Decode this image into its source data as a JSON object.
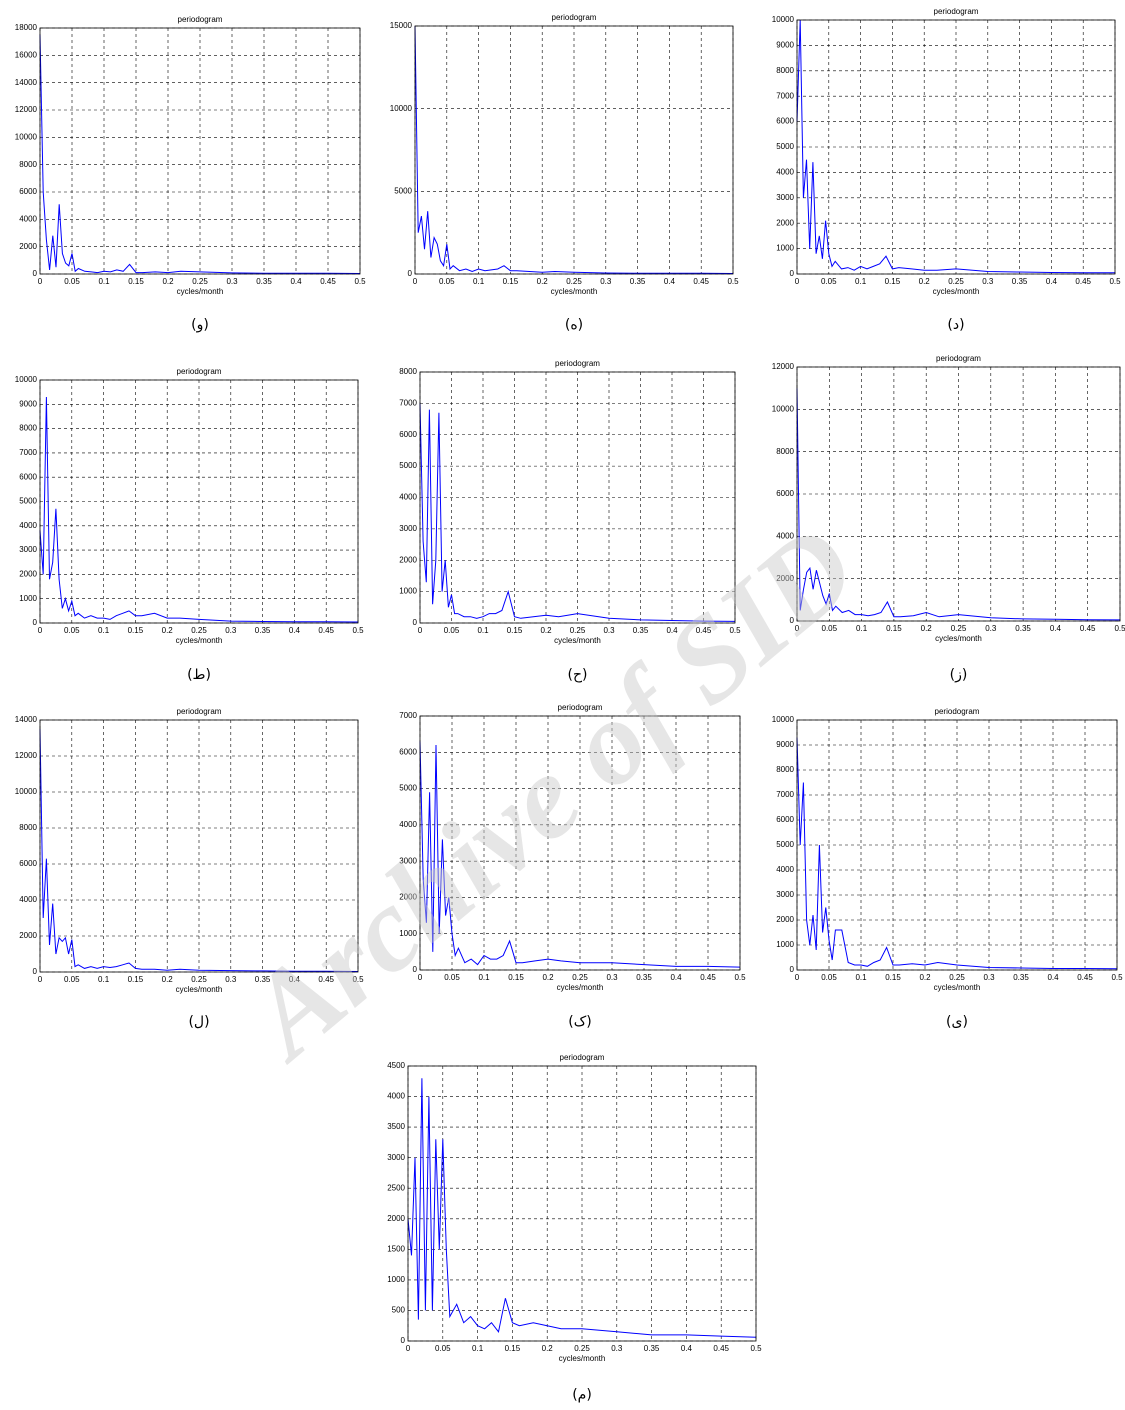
{
  "watermark": "Archive of SID",
  "chart_data": [
    {
      "type": "line",
      "title": "periodogram",
      "x_label": "cycles/month",
      "caption": "(و)",
      "color": "#0000ff",
      "grid": true,
      "x": [
        0,
        0.005,
        0.01,
        0.015,
        0.02,
        0.025,
        0.03,
        0.035,
        0.04,
        0.045,
        0.05,
        0.055,
        0.06,
        0.07,
        0.08,
        0.09,
        0.1,
        0.11,
        0.12,
        0.13,
        0.14,
        0.15,
        0.16,
        0.18,
        0.2,
        0.22,
        0.25,
        0.3,
        0.35,
        0.4,
        0.45,
        0.5
      ],
      "values": [
        17500,
        6000,
        2500,
        300,
        2800,
        500,
        5100,
        1500,
        800,
        600,
        1500,
        200,
        400,
        200,
        150,
        100,
        200,
        150,
        300,
        200,
        700,
        100,
        100,
        150,
        100,
        200,
        150,
        80,
        60,
        50,
        50,
        40
      ],
      "xlim": [
        0,
        0.5
      ],
      "xticks": [
        0,
        0.05,
        0.1,
        0.15,
        0.2,
        0.25,
        0.3,
        0.35,
        0.4,
        0.45,
        0.5
      ],
      "ylim": [
        0,
        18000
      ],
      "yticks": [
        0,
        2000,
        4000,
        6000,
        8000,
        10000,
        12000,
        14000,
        16000,
        18000
      ]
    },
    {
      "type": "line",
      "title": "periodogram",
      "x_label": "cycles/month",
      "caption": "(ه)",
      "color": "#0000ff",
      "grid": true,
      "x": [
        0,
        0.005,
        0.01,
        0.015,
        0.02,
        0.025,
        0.03,
        0.035,
        0.04,
        0.045,
        0.05,
        0.055,
        0.06,
        0.07,
        0.08,
        0.09,
        0.1,
        0.11,
        0.12,
        0.13,
        0.14,
        0.15,
        0.16,
        0.18,
        0.2,
        0.22,
        0.25,
        0.3,
        0.35,
        0.4,
        0.45,
        0.5
      ],
      "values": [
        15000,
        2500,
        3500,
        1500,
        3800,
        1000,
        2200,
        1800,
        800,
        500,
        1800,
        300,
        500,
        200,
        300,
        150,
        300,
        200,
        250,
        300,
        500,
        200,
        200,
        150,
        100,
        150,
        100,
        60,
        50,
        40,
        40,
        30
      ],
      "xlim": [
        0,
        0.5
      ],
      "xticks": [
        0,
        0.05,
        0.1,
        0.15,
        0.2,
        0.25,
        0.3,
        0.35,
        0.4,
        0.45,
        0.5
      ],
      "ylim": [
        0,
        15000
      ],
      "yticks": [
        0,
        5000,
        10000,
        15000
      ]
    },
    {
      "type": "line",
      "title": "periodogram",
      "x_label": "cycles/month",
      "caption": "(د)",
      "color": "#0000ff",
      "grid": true,
      "x": [
        0,
        0.005,
        0.01,
        0.015,
        0.02,
        0.025,
        0.03,
        0.035,
        0.04,
        0.045,
        0.05,
        0.055,
        0.06,
        0.07,
        0.08,
        0.09,
        0.1,
        0.11,
        0.12,
        0.13,
        0.14,
        0.15,
        0.16,
        0.18,
        0.2,
        0.22,
        0.25,
        0.3,
        0.35,
        0.4,
        0.45,
        0.5
      ],
      "values": [
        6000,
        10000,
        3000,
        4500,
        1000,
        4400,
        800,
        1500,
        600,
        2100,
        800,
        300,
        500,
        200,
        250,
        150,
        300,
        200,
        300,
        400,
        700,
        200,
        250,
        200,
        150,
        150,
        200,
        100,
        80,
        60,
        50,
        50
      ],
      "xlim": [
        0,
        0.5
      ],
      "xticks": [
        0,
        0.05,
        0.1,
        0.15,
        0.2,
        0.25,
        0.3,
        0.35,
        0.4,
        0.45,
        0.5
      ],
      "ylim": [
        0,
        10000
      ],
      "yticks": [
        0,
        1000,
        2000,
        3000,
        4000,
        5000,
        6000,
        7000,
        8000,
        9000,
        10000
      ]
    },
    {
      "type": "line",
      "title": "periodogram",
      "x_label": "cycles/month",
      "caption": "(ط)",
      "color": "#0000ff",
      "grid": true,
      "x": [
        0,
        0.005,
        0.01,
        0.015,
        0.02,
        0.025,
        0.03,
        0.035,
        0.04,
        0.045,
        0.05,
        0.055,
        0.06,
        0.07,
        0.08,
        0.09,
        0.1,
        0.11,
        0.12,
        0.13,
        0.14,
        0.15,
        0.16,
        0.18,
        0.2,
        0.22,
        0.25,
        0.3,
        0.35,
        0.4,
        0.45,
        0.5
      ],
      "values": [
        3800,
        2000,
        9300,
        1800,
        2500,
        4700,
        1800,
        600,
        1000,
        500,
        900,
        300,
        400,
        200,
        300,
        200,
        200,
        150,
        300,
        400,
        500,
        300,
        300,
        400,
        200,
        200,
        150,
        80,
        60,
        50,
        50,
        40
      ],
      "xlim": [
        0,
        0.5
      ],
      "xticks": [
        0,
        0.05,
        0.1,
        0.15,
        0.2,
        0.25,
        0.3,
        0.35,
        0.4,
        0.45,
        0.5
      ],
      "ylim": [
        0,
        10000
      ],
      "yticks": [
        0,
        1000,
        2000,
        3000,
        4000,
        5000,
        6000,
        7000,
        8000,
        9000,
        10000
      ]
    },
    {
      "type": "line",
      "title": "periodogram",
      "x_label": "cycles/month",
      "caption": "(ح)",
      "color": "#0000ff",
      "grid": true,
      "x": [
        0,
        0.005,
        0.01,
        0.015,
        0.02,
        0.025,
        0.03,
        0.035,
        0.04,
        0.045,
        0.05,
        0.055,
        0.06,
        0.07,
        0.08,
        0.09,
        0.1,
        0.11,
        0.12,
        0.13,
        0.14,
        0.15,
        0.16,
        0.18,
        0.2,
        0.22,
        0.25,
        0.3,
        0.35,
        0.4,
        0.45,
        0.5
      ],
      "values": [
        7000,
        2600,
        1300,
        6800,
        600,
        2000,
        6700,
        1000,
        2000,
        500,
        900,
        300,
        300,
        200,
        200,
        150,
        200,
        300,
        300,
        400,
        1000,
        200,
        150,
        200,
        250,
        200,
        300,
        150,
        100,
        80,
        60,
        50
      ],
      "xlim": [
        0,
        0.5
      ],
      "xticks": [
        0,
        0.05,
        0.1,
        0.15,
        0.2,
        0.25,
        0.3,
        0.35,
        0.4,
        0.45,
        0.5
      ],
      "ylim": [
        0,
        8000
      ],
      "yticks": [
        0,
        1000,
        2000,
        3000,
        4000,
        5000,
        6000,
        7000,
        8000
      ]
    },
    {
      "type": "line",
      "title": "periodogram",
      "x_label": "cycles/month",
      "caption": "(ز)",
      "color": "#0000ff",
      "grid": true,
      "x": [
        0,
        0.005,
        0.01,
        0.015,
        0.02,
        0.025,
        0.03,
        0.035,
        0.04,
        0.045,
        0.05,
        0.055,
        0.06,
        0.07,
        0.08,
        0.09,
        0.1,
        0.11,
        0.12,
        0.13,
        0.14,
        0.15,
        0.16,
        0.18,
        0.2,
        0.22,
        0.25,
        0.3,
        0.35,
        0.4,
        0.45,
        0.5
      ],
      "values": [
        11000,
        500,
        1500,
        2300,
        2500,
        1500,
        2400,
        1800,
        1200,
        800,
        1300,
        500,
        700,
        400,
        500,
        300,
        300,
        250,
        300,
        400,
        900,
        200,
        200,
        250,
        400,
        200,
        300,
        150,
        100,
        80,
        60,
        50
      ],
      "xlim": [
        0,
        0.5
      ],
      "xticks": [
        0,
        0.05,
        0.1,
        0.15,
        0.2,
        0.25,
        0.3,
        0.35,
        0.4,
        0.45,
        0.5
      ],
      "ylim": [
        0,
        12000
      ],
      "yticks": [
        0,
        2000,
        4000,
        6000,
        8000,
        10000,
        12000
      ]
    },
    {
      "type": "line",
      "title": "periodogram",
      "x_label": "cycles/month",
      "caption": "(ل)",
      "color": "#0000ff",
      "grid": true,
      "x": [
        0,
        0.005,
        0.01,
        0.015,
        0.02,
        0.025,
        0.03,
        0.035,
        0.04,
        0.045,
        0.05,
        0.055,
        0.06,
        0.07,
        0.08,
        0.09,
        0.1,
        0.11,
        0.12,
        0.13,
        0.14,
        0.15,
        0.16,
        0.18,
        0.2,
        0.22,
        0.25,
        0.3,
        0.35,
        0.4,
        0.45,
        0.5
      ],
      "values": [
        13500,
        3000,
        6300,
        1500,
        3800,
        1000,
        1900,
        1700,
        1900,
        1000,
        1800,
        300,
        400,
        200,
        300,
        200,
        300,
        250,
        300,
        400,
        500,
        200,
        150,
        150,
        100,
        150,
        100,
        80,
        60,
        40,
        40,
        30
      ],
      "xlim": [
        0,
        0.5
      ],
      "xticks": [
        0,
        0.05,
        0.1,
        0.15,
        0.2,
        0.25,
        0.3,
        0.35,
        0.4,
        0.45,
        0.5
      ],
      "ylim": [
        0,
        14000
      ],
      "yticks": [
        0,
        2000,
        4000,
        6000,
        8000,
        10000,
        12000,
        14000
      ]
    },
    {
      "type": "line",
      "title": "periodogram",
      "x_label": "cycles/month",
      "caption": "(ک)",
      "color": "#0000ff",
      "grid": true,
      "x": [
        0,
        0.005,
        0.01,
        0.015,
        0.02,
        0.025,
        0.03,
        0.035,
        0.04,
        0.045,
        0.05,
        0.055,
        0.06,
        0.07,
        0.08,
        0.09,
        0.1,
        0.11,
        0.12,
        0.13,
        0.14,
        0.15,
        0.16,
        0.18,
        0.2,
        0.22,
        0.25,
        0.3,
        0.35,
        0.4,
        0.45,
        0.5
      ],
      "values": [
        6300,
        2500,
        1300,
        4900,
        500,
        6200,
        1000,
        3600,
        1500,
        2000,
        1000,
        400,
        600,
        200,
        300,
        150,
        400,
        300,
        300,
        400,
        800,
        200,
        200,
        250,
        300,
        250,
        200,
        200,
        150,
        100,
        100,
        80
      ],
      "xlim": [
        0,
        0.5
      ],
      "xticks": [
        0,
        0.05,
        0.1,
        0.15,
        0.2,
        0.25,
        0.3,
        0.35,
        0.4,
        0.45,
        0.5
      ],
      "ylim": [
        0,
        7000
      ],
      "yticks": [
        0,
        1000,
        2000,
        3000,
        4000,
        5000,
        6000,
        7000
      ]
    },
    {
      "type": "line",
      "title": "periodogram",
      "x_label": "cycles/month",
      "caption": "(ی)",
      "color": "#0000ff",
      "grid": true,
      "x": [
        0,
        0.005,
        0.01,
        0.015,
        0.02,
        0.025,
        0.03,
        0.035,
        0.04,
        0.045,
        0.05,
        0.055,
        0.06,
        0.07,
        0.08,
        0.09,
        0.1,
        0.11,
        0.12,
        0.13,
        0.14,
        0.15,
        0.16,
        0.18,
        0.2,
        0.22,
        0.25,
        0.3,
        0.35,
        0.4,
        0.45,
        0.5
      ],
      "values": [
        9300,
        5000,
        7500,
        2000,
        1000,
        2200,
        800,
        5000,
        1500,
        2500,
        1200,
        400,
        1600,
        1600,
        300,
        200,
        200,
        150,
        300,
        400,
        900,
        200,
        200,
        250,
        200,
        300,
        200,
        100,
        80,
        60,
        60,
        50
      ],
      "xlim": [
        0,
        0.5
      ],
      "xticks": [
        0,
        0.05,
        0.1,
        0.15,
        0.2,
        0.25,
        0.3,
        0.35,
        0.4,
        0.45,
        0.5
      ],
      "ylim": [
        0,
        10000
      ],
      "yticks": [
        0,
        1000,
        2000,
        3000,
        4000,
        5000,
        6000,
        7000,
        8000,
        9000,
        10000
      ]
    },
    {
      "type": "line",
      "title": "periodogram",
      "x_label": "cycles/month",
      "caption": "(م)",
      "color": "#0000ff",
      "grid": true,
      "x": [
        0,
        0.005,
        0.01,
        0.015,
        0.02,
        0.025,
        0.03,
        0.035,
        0.04,
        0.045,
        0.05,
        0.055,
        0.06,
        0.07,
        0.08,
        0.09,
        0.1,
        0.11,
        0.12,
        0.13,
        0.14,
        0.15,
        0.16,
        0.18,
        0.2,
        0.22,
        0.25,
        0.3,
        0.35,
        0.4,
        0.45,
        0.5
      ],
      "values": [
        2000,
        1400,
        3000,
        350,
        4300,
        500,
        4000,
        500,
        3300,
        1500,
        3300,
        1500,
        400,
        600,
        300,
        400,
        250,
        200,
        300,
        150,
        700,
        300,
        250,
        300,
        250,
        200,
        200,
        150,
        100,
        100,
        80,
        60
      ],
      "xlim": [
        0,
        0.5
      ],
      "xticks": [
        0,
        0.05,
        0.1,
        0.15,
        0.2,
        0.25,
        0.3,
        0.35,
        0.4,
        0.45,
        0.5
      ],
      "ylim": [
        0,
        4500
      ],
      "yticks": [
        0,
        500,
        1000,
        1500,
        2000,
        2500,
        3000,
        3500,
        4000,
        4500
      ]
    }
  ]
}
